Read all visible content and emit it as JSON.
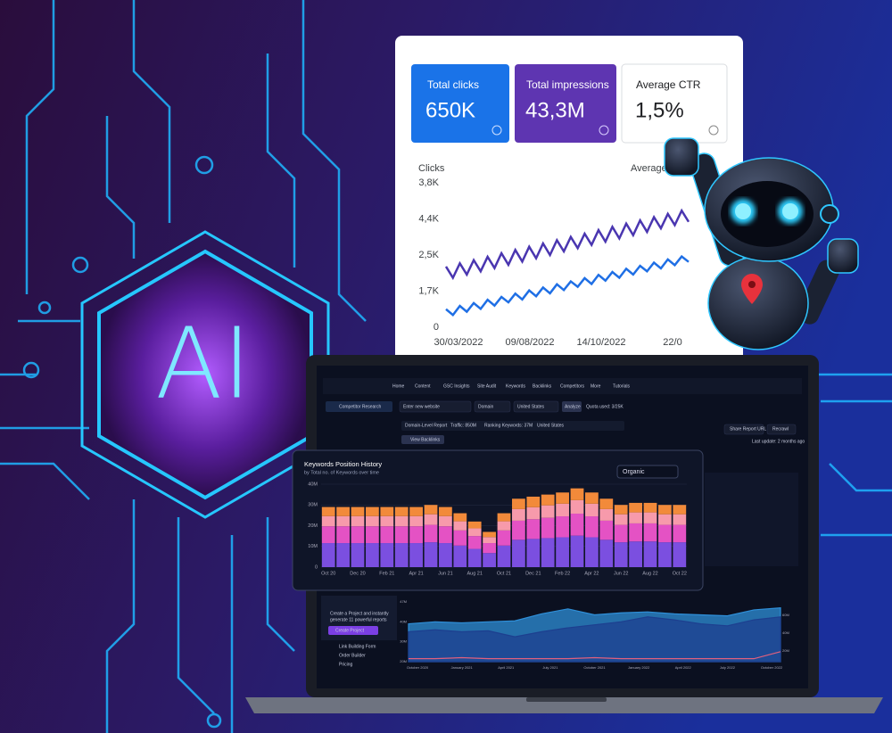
{
  "hero": {
    "label": "AI"
  },
  "gsc_card": {
    "metrics": [
      {
        "label": "Total clicks",
        "value": "650K"
      },
      {
        "label": "Total impressions",
        "value": "43,3M"
      },
      {
        "label": "Average CTR",
        "value": "1,5%"
      }
    ]
  },
  "dashboard": {
    "nav": [
      "Home",
      "Content",
      "GSC Insights",
      "Site Audit",
      "Keywords",
      "Backlinks",
      "Competitors",
      "More",
      "Tutorials"
    ],
    "search": {
      "title": "Competitor Research",
      "placeholder": "Enter new website",
      "scope": "Domain",
      "country": "United States",
      "button": "Analyze",
      "quota": "Quota used: 3/25K"
    },
    "report": {
      "chips": [
        "Domain-Level Report",
        "Traffic: 850M",
        "Ranking Keywords: 37M",
        "United States"
      ],
      "backlinks": "View Backlinks"
    },
    "actions": [
      "Share Report URL",
      "Recrawl"
    ],
    "updated": "Last update: 2 months ago",
    "sidebar": {
      "promo": [
        "Create a Project and instantly",
        "generate 11 powerful reports"
      ],
      "button": "Create Project",
      "links": [
        "Link Building Form",
        "Order Builder",
        "Pricing"
      ]
    }
  },
  "chart_data": [
    {
      "type": "line",
      "y_axis_title": "Clicks",
      "y2_axis_title": "Average position",
      "y_labels": [
        "3,8K",
        "4,4K",
        "2,5K",
        "1,7K",
        "0"
      ],
      "x_labels": [
        "30/03/2022",
        "09/08/2022",
        "14/10/2022",
        "22/0"
      ],
      "ylim": [
        0,
        4
      ],
      "series": [
        {
          "color": "#4a36b0",
          "values": [
            1.68,
            1.37,
            1.77,
            1.46,
            1.86,
            1.55,
            1.95,
            1.64,
            2.05,
            1.73,
            2.14,
            1.82,
            2.23,
            1.91,
            2.32,
            2.0,
            2.41,
            2.1,
            2.5,
            2.19,
            2.59,
            2.28,
            2.69,
            2.37,
            2.78,
            2.46,
            2.87,
            2.55,
            2.96,
            2.64,
            3.05,
            2.74,
            3.14,
            2.83,
            3.23,
            2.92
          ]
        },
        {
          "color": "#1f6fe5",
          "values": [
            0.5,
            0.34,
            0.59,
            0.43,
            0.67,
            0.51,
            0.76,
            0.6,
            0.84,
            0.69,
            0.93,
            0.77,
            1.02,
            0.86,
            1.1,
            0.94,
            1.19,
            1.03,
            1.27,
            1.12,
            1.36,
            1.2,
            1.45,
            1.29,
            1.53,
            1.37,
            1.62,
            1.46,
            1.7,
            1.55,
            1.79,
            1.63,
            1.88,
            1.72,
            1.96,
            1.81
          ]
        }
      ]
    },
    {
      "type": "bar",
      "stacked": true,
      "title": "Keywords Position History",
      "subtitle": "by Total no. of Keywords over time",
      "dropdown": "Organic",
      "categories": [
        "Oct 20",
        null,
        "Dec 20",
        null,
        "Feb 21",
        null,
        "Apr 21",
        null,
        "Jun 21",
        null,
        "Aug 21",
        null,
        "Oct 21",
        null,
        "Dec 21",
        null,
        "Feb 22",
        null,
        "Apr 22",
        null,
        "Jun 22",
        null,
        "Aug 22",
        null,
        "Oct 22"
      ],
      "ylim": [
        0,
        40
      ],
      "yticks": [
        0,
        {
          "value": 10,
          "label": "10M"
        },
        {
          "value": 20,
          "label": "20M"
        },
        {
          "value": 30,
          "label": "30M"
        },
        {
          "value": 40,
          "label": "40M"
        }
      ],
      "grid": true,
      "series": [
        {
          "color": "#7b4fe0",
          "values": [
            11.6,
            11.6,
            11.6,
            11.6,
            11.6,
            11.6,
            11.6,
            12,
            11.6,
            10.4,
            8.8,
            6.8,
            10.4,
            13.2,
            13.6,
            14,
            14.4,
            15.2,
            14.4,
            13.2,
            12,
            12.4,
            12.4,
            12,
            12
          ]
        },
        {
          "color": "#e452c4",
          "values": [
            8.1,
            8.1,
            8.1,
            8.1,
            8.1,
            8.1,
            8.1,
            8.4,
            8.1,
            7.3,
            6.2,
            4.8,
            7.3,
            9.2,
            9.5,
            9.8,
            10.1,
            10.6,
            10.1,
            9.2,
            8.4,
            8.7,
            8.7,
            8.4,
            8.4
          ]
        },
        {
          "color": "#f79aab",
          "values": [
            4.9,
            4.9,
            4.9,
            4.9,
            4.9,
            4.9,
            4.9,
            5.1,
            4.9,
            4.4,
            3.7,
            2.9,
            4.4,
            5.6,
            5.8,
            6,
            6.1,
            6.5,
            6.1,
            5.6,
            5.1,
            5.3,
            5.3,
            5.1,
            5.1
          ]
        },
        {
          "color": "#f28a3a",
          "values": [
            4.4,
            4.4,
            4.4,
            4.4,
            4.4,
            4.4,
            4.4,
            4.5,
            4.4,
            3.9,
            3.3,
            2.5,
            3.9,
            5,
            5.1,
            5.2,
            5.4,
            5.7,
            5.4,
            5,
            4.5,
            4.6,
            4.6,
            4.5,
            4.5
          ]
        }
      ]
    },
    {
      "type": "area",
      "x_labels": [
        "October 2020",
        "January 2021",
        "April 2021",
        "July 2021",
        "October 2021",
        "January 2022",
        "April 2022",
        "July 2022",
        "October 2022"
      ],
      "left_labels": [
        "47M",
        "40M",
        "30M",
        "20M"
      ],
      "right_labels": [
        "60M",
        "40M",
        "20M"
      ],
      "ylim": [
        0,
        60
      ],
      "series": [
        {
          "color": "#2f8fd8",
          "values": [
            38,
            40,
            39,
            40,
            41,
            48,
            53,
            47,
            49,
            50,
            48,
            47,
            46,
            52,
            54
          ]
        },
        {
          "color": "#1d3f8f",
          "values": [
            30,
            32,
            30,
            31,
            25,
            30,
            34,
            37,
            40,
            45,
            42,
            38,
            36,
            42,
            45
          ]
        },
        {
          "color": "#e0607e",
          "values": [
            3,
            3,
            4,
            3,
            3,
            3,
            3,
            4,
            3,
            3,
            3,
            3,
            3,
            3,
            10
          ]
        }
      ]
    }
  ]
}
